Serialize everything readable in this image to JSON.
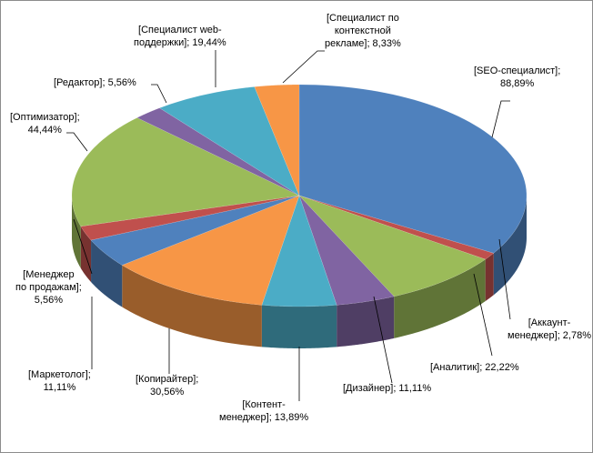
{
  "chart_data": {
    "type": "pie",
    "style": "3d",
    "title": "",
    "legend": "none",
    "categories": [
      "SEO-специалист",
      "Аккаунт-менеджер",
      "Аналитик",
      "Дизайнер",
      "Контент-менеджер",
      "Копирайтер",
      "Маркетолог",
      "Менеджер по продажам",
      "Оптимизатор",
      "Редактор",
      "Специалист web-поддержки",
      "Специалист по контекстной рекламе"
    ],
    "values": [
      88.89,
      2.78,
      22.22,
      11.11,
      13.89,
      30.56,
      11.11,
      5.56,
      44.44,
      5.56,
      19.44,
      8.33
    ],
    "colors": [
      "#4F81BD",
      "#C0504D",
      "#9BBB59",
      "#8064A2",
      "#4BACC6",
      "#F79646",
      "#4F81BD",
      "#C0504D",
      "#9BBB59",
      "#8064A2",
      "#4BACC6",
      "#F79646"
    ],
    "labels": [
      [
        "[SEO-специалист];",
        "88,89%"
      ],
      [
        "[Аккаунт-",
        "менеджер]; 2,78%"
      ],
      [
        "[Аналитик];  22,22%"
      ],
      [
        "[Дизайнер];  11,11%"
      ],
      [
        "[Контент-",
        "менеджер]; 13,89%"
      ],
      [
        "[Копирайтер];",
        "30,56%"
      ],
      [
        "[Маркетолог];",
        "11,11%"
      ],
      [
        "[Менеджер",
        "по продажам];",
        "5,56%"
      ],
      [
        "[Оптимизатор];",
        "44,44%"
      ],
      [
        "[Редактор];  5,56%"
      ],
      [
        "[Специалист  web-",
        "поддержки]; 19,44%"
      ],
      [
        "[Специалист  по",
        "контекстной",
        "рекламе]; 8,33%"
      ]
    ]
  }
}
